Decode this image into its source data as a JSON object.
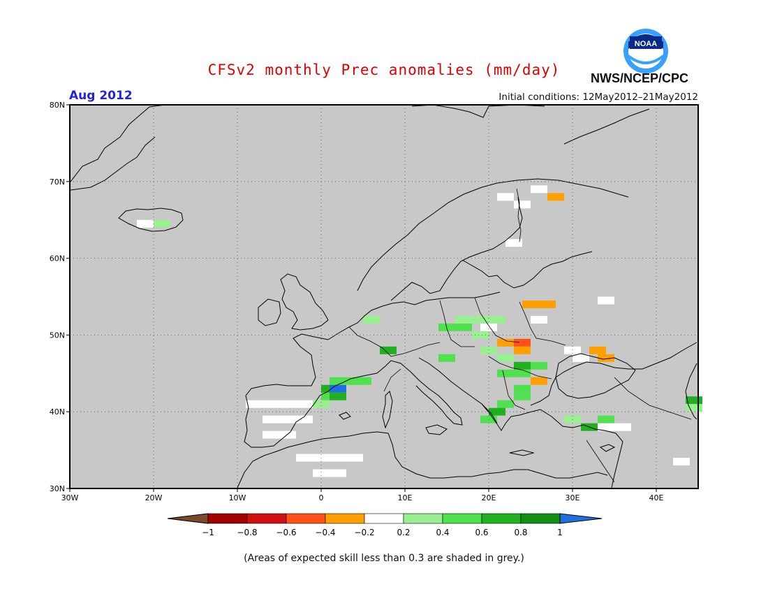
{
  "header": {
    "title": "CFSv2 monthly Prec anomalies (mm/day)",
    "month": "Aug 2012",
    "initial_conditions": "Initial conditions: 12May2012–21May2012",
    "agency": "NWS/NCEP/CPC",
    "logo_text": "NOAA"
  },
  "colors": {
    "title": "#e00000",
    "month": "#2222dd",
    "ocean_and_low_skill": "#c8c8c8",
    "coastline": "#000000",
    "grid": "#555555"
  },
  "map": {
    "projection": "equirectangular",
    "lon_range": [
      -30,
      45
    ],
    "lat_range": [
      30,
      80
    ],
    "grid": true,
    "lat_labels": [
      "80N",
      "70N",
      "60N",
      "50N",
      "40N",
      "30N"
    ],
    "lon_labels": [
      "30W",
      "20W",
      "10W",
      "0",
      "10E",
      "20E",
      "30E",
      "40E"
    ]
  },
  "legend": {
    "tick_labels": [
      "−1",
      "−0.8",
      "−0.6",
      "−0.4",
      "−0.2",
      "0.2",
      "0.4",
      "0.6",
      "0.8",
      "1"
    ],
    "boxes": [
      {
        "lo": -1.0,
        "hi": -0.8,
        "color": "#a00000"
      },
      {
        "lo": -0.8,
        "hi": -0.6,
        "color": "#d01010"
      },
      {
        "lo": -0.6,
        "hi": -0.4,
        "color": "#ff5018"
      },
      {
        "lo": -0.4,
        "hi": -0.2,
        "color": "#ffa000"
      },
      {
        "lo": -0.2,
        "hi": 0.2,
        "color": "#ffffff"
      },
      {
        "lo": 0.2,
        "hi": 0.4,
        "color": "#98f090"
      },
      {
        "lo": 0.4,
        "hi": 0.6,
        "color": "#50e050"
      },
      {
        "lo": 0.6,
        "hi": 0.8,
        "color": "#20b020"
      },
      {
        "lo": 0.8,
        "hi": 1.0,
        "color": "#109010"
      }
    ],
    "below_color": "#7a4a2a",
    "above_color": "#1e70e0"
  },
  "anomaly_cells": [
    {
      "lon": -21,
      "lat": 64.5,
      "cat": "white"
    },
    {
      "lon": -19,
      "lat": 64.5,
      "cat": "green1"
    },
    {
      "lon": -8,
      "lat": 41,
      "cat": "white"
    },
    {
      "lon": -6,
      "lat": 41,
      "cat": "white"
    },
    {
      "lon": -4,
      "lat": 41,
      "cat": "white"
    },
    {
      "lon": -6,
      "lat": 39,
      "cat": "white"
    },
    {
      "lon": -4,
      "lat": 39,
      "cat": "white"
    },
    {
      "lon": -2,
      "lat": 39,
      "cat": "white"
    },
    {
      "lon": -6,
      "lat": 37,
      "cat": "white"
    },
    {
      "lon": -4,
      "lat": 37,
      "cat": "white"
    },
    {
      "lon": -2,
      "lat": 41,
      "cat": "white"
    },
    {
      "lon": 0,
      "lat": 41,
      "cat": "green1"
    },
    {
      "lon": 1,
      "lat": 42,
      "cat": "green2"
    },
    {
      "lon": 1,
      "lat": 43,
      "cat": "green3"
    },
    {
      "lon": 2,
      "lat": 43,
      "cat": "blue"
    },
    {
      "lon": 2,
      "lat": 42,
      "cat": "green3"
    },
    {
      "lon": 2,
      "lat": 44,
      "cat": "green2"
    },
    {
      "lon": 4,
      "lat": 44,
      "cat": "green2"
    },
    {
      "lon": 5,
      "lat": 44,
      "cat": "green2"
    },
    {
      "lon": 0,
      "lat": 34,
      "cat": "white"
    },
    {
      "lon": 2,
      "lat": 34,
      "cat": "white"
    },
    {
      "lon": 4,
      "lat": 34,
      "cat": "white"
    },
    {
      "lon": 0,
      "lat": 32,
      "cat": "white"
    },
    {
      "lon": 2,
      "lat": 32,
      "cat": "white"
    },
    {
      "lon": -2,
      "lat": 34,
      "cat": "white"
    },
    {
      "lon": 6,
      "lat": 52,
      "cat": "green1"
    },
    {
      "lon": 8,
      "lat": 48,
      "cat": "green3"
    },
    {
      "lon": 15,
      "lat": 51,
      "cat": "green2"
    },
    {
      "lon": 17,
      "lat": 51,
      "cat": "green2"
    },
    {
      "lon": 17,
      "lat": 52,
      "cat": "green1"
    },
    {
      "lon": 19,
      "lat": 52,
      "cat": "green1"
    },
    {
      "lon": 21,
      "lat": 52,
      "cat": "green1"
    },
    {
      "lon": 19,
      "lat": 50,
      "cat": "green1"
    },
    {
      "lon": 20,
      "lat": 51,
      "cat": "white"
    },
    {
      "lon": 25,
      "lat": 54,
      "cat": "orange"
    },
    {
      "lon": 27,
      "lat": 54,
      "cat": "orange"
    },
    {
      "lon": 26,
      "lat": 52,
      "cat": "white"
    },
    {
      "lon": 22,
      "lat": 49,
      "cat": "orange"
    },
    {
      "lon": 24,
      "lat": 49,
      "cat": "red"
    },
    {
      "lon": 24,
      "lat": 48,
      "cat": "orange"
    },
    {
      "lon": 20,
      "lat": 48,
      "cat": "green1"
    },
    {
      "lon": 22,
      "lat": 47,
      "cat": "green1"
    },
    {
      "lon": 24,
      "lat": 46,
      "cat": "green3"
    },
    {
      "lon": 26,
      "lat": 46,
      "cat": "green2"
    },
    {
      "lon": 22,
      "lat": 45,
      "cat": "green2"
    },
    {
      "lon": 24,
      "lat": 45,
      "cat": "green2"
    },
    {
      "lon": 26,
      "lat": 44,
      "cat": "orange"
    },
    {
      "lon": 24,
      "lat": 43,
      "cat": "green2"
    },
    {
      "lon": 24,
      "lat": 42,
      "cat": "green2"
    },
    {
      "lon": 22,
      "lat": 41,
      "cat": "green2"
    },
    {
      "lon": 21,
      "lat": 40,
      "cat": "green3"
    },
    {
      "lon": 20,
      "lat": 39,
      "cat": "green2"
    },
    {
      "lon": 15,
      "lat": 47,
      "cat": "green2"
    },
    {
      "lon": 31,
      "lat": 47,
      "cat": "white"
    },
    {
      "lon": 33,
      "lat": 48,
      "cat": "orange"
    },
    {
      "lon": 34,
      "lat": 47,
      "cat": "orange"
    },
    {
      "lon": 30,
      "lat": 48,
      "cat": "white"
    },
    {
      "lon": 30,
      "lat": 39,
      "cat": "green1"
    },
    {
      "lon": 32,
      "lat": 38,
      "cat": "green3"
    },
    {
      "lon": 34,
      "lat": 39,
      "cat": "green2"
    },
    {
      "lon": 36,
      "lat": 38,
      "cat": "white"
    },
    {
      "lon": 34,
      "lat": 38,
      "cat": "white"
    },
    {
      "lon": 24,
      "lat": 67,
      "cat": "white"
    },
    {
      "lon": 26,
      "lat": 69,
      "cat": "white"
    },
    {
      "lon": 28,
      "lat": 68,
      "cat": "orange"
    },
    {
      "lon": 22,
      "lat": 68,
      "cat": "white"
    },
    {
      "lon": 23,
      "lat": 62,
      "cat": "white"
    },
    {
      "lon": 34,
      "lat": 54.5,
      "cat": "white"
    },
    {
      "lon": 44.5,
      "lat": 41.5,
      "cat": "green3"
    },
    {
      "lon": 44.5,
      "lat": 40.5,
      "cat": "green1"
    },
    {
      "lon": 43,
      "lat": 33.5,
      "cat": "white"
    }
  ],
  "notes": {
    "skill_note": "(Areas of expected skill less than 0.3 are shaded in grey.)"
  }
}
